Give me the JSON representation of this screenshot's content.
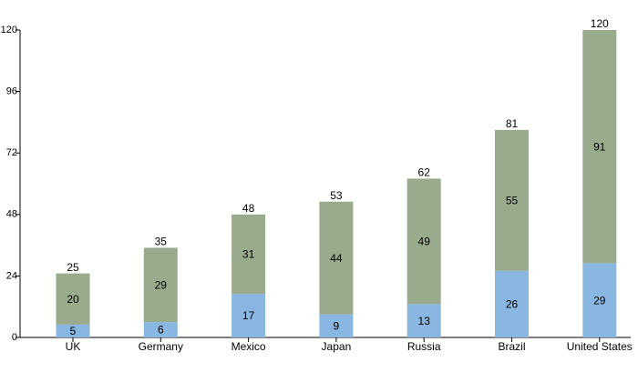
{
  "chart_data": {
    "type": "stacked-bar",
    "categories": [
      "UK",
      "Germany",
      "Mexico",
      "Japan",
      "Russia",
      "Brazil",
      "United States"
    ],
    "series": [
      {
        "color": "#89b7e1",
        "values": [
          5,
          6,
          17,
          9,
          13,
          26,
          29
        ]
      },
      {
        "color": "#9aaa8d",
        "values": [
          20,
          29,
          31,
          44,
          49,
          55,
          91
        ]
      }
    ],
    "totals": [
      25,
      35,
      48,
      53,
      62,
      81,
      120
    ],
    "ylim": [
      0,
      120
    ],
    "yticks": [
      0,
      24,
      48,
      72,
      96,
      120
    ]
  }
}
